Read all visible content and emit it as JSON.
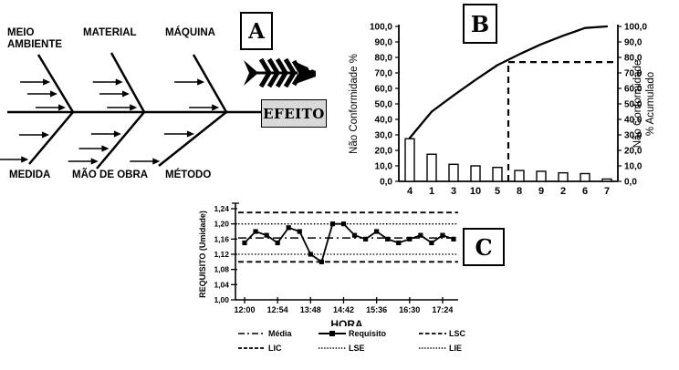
{
  "colors": {
    "ink": "#000000",
    "background": "#ffffff",
    "effect_box_bg": "#d9d9d9",
    "bar_fill": "#ffffff"
  },
  "panels": {
    "a": {
      "tag": "A",
      "effect_label": "EFEITO",
      "top_categories": [
        "MEIO AMBIENTE",
        "MATERIAL",
        "MÁQUINA"
      ],
      "bottom_categories": [
        "MEDIDA",
        "MÃO DE OBRA",
        "MÉTODO"
      ]
    },
    "b": {
      "tag": "B"
    },
    "c": {
      "tag": "C"
    }
  },
  "chart_data": [
    {
      "id": "pareto",
      "panel": "B",
      "type": "bar",
      "categories": [
        "4",
        "1",
        "3",
        "10",
        "5",
        "8",
        "9",
        "2",
        "6",
        "7"
      ],
      "series": [
        {
          "name": "Não Conformidade %",
          "type": "bar",
          "values": [
            27.5,
            17.5,
            11,
            10,
            9,
            7,
            6.5,
            5.5,
            5,
            1.5
          ]
        },
        {
          "name": "Não Conformidade % Acumulado",
          "type": "line",
          "values": [
            28,
            45,
            55.5,
            65.5,
            75,
            82,
            88.5,
            94,
            99,
            100
          ]
        }
      ],
      "ylabel_left": "Não Conformidade %",
      "ylabel_right_lines": [
        "Não Conformidade",
        "% Acumulado"
      ],
      "ylim": [
        0,
        100
      ],
      "ytick_step": 10,
      "ytick_labels": [
        "0,0",
        "10,0",
        "20,0",
        "30,0",
        "40,0",
        "50,0",
        "60,0",
        "70,0",
        "80,0",
        "90,0",
        "100,0"
      ],
      "grid": false,
      "guides": {
        "horizontal_at": 77,
        "vertical_after_category": "5"
      }
    },
    {
      "id": "control-chart",
      "panel": "C",
      "type": "line",
      "series_name": "Requisito",
      "values": [
        1.15,
        1.18,
        1.17,
        1.15,
        1.19,
        1.18,
        1.12,
        1.1,
        1.2,
        1.2,
        1.17,
        1.16,
        1.18,
        1.16,
        1.15,
        1.16,
        1.17,
        1.15,
        1.17,
        1.16
      ],
      "xlabel": "HORA",
      "ylabel": "REQUISITO (Umidade)",
      "ylim": [
        1.0,
        1.24
      ],
      "ytick_step": 0.04,
      "ytick_labels": [
        "1,00",
        "1,04",
        "1,08",
        "1,12",
        "1,16",
        "1,20",
        "1,24"
      ],
      "xtick_labels": [
        "12:00",
        "12:54",
        "13:48",
        "14:42",
        "15:36",
        "16:30",
        "17:24"
      ],
      "xtick_point_indices": [
        0,
        3,
        6,
        9,
        12,
        15,
        18
      ],
      "ref_lines": [
        {
          "name": "LSC",
          "value": 1.23,
          "style": "dashed"
        },
        {
          "name": "LSE",
          "value": 1.2,
          "style": "dotted"
        },
        {
          "name": "Média",
          "value": 1.163,
          "style": "dashdot"
        },
        {
          "name": "LIE",
          "value": 1.12,
          "style": "dotted"
        },
        {
          "name": "LIC",
          "value": 1.1,
          "style": "dashed"
        }
      ],
      "legend": [
        {
          "label": "Média",
          "style": "dashdot"
        },
        {
          "label": "Requisito",
          "style": "solid-square"
        },
        {
          "label": "LSC",
          "style": "dashed"
        },
        {
          "label": "LIC",
          "style": "dashed"
        },
        {
          "label": "LSE",
          "style": "dotted"
        },
        {
          "label": "LIE",
          "style": "dotted"
        }
      ],
      "legend_position": "bottom"
    }
  ]
}
